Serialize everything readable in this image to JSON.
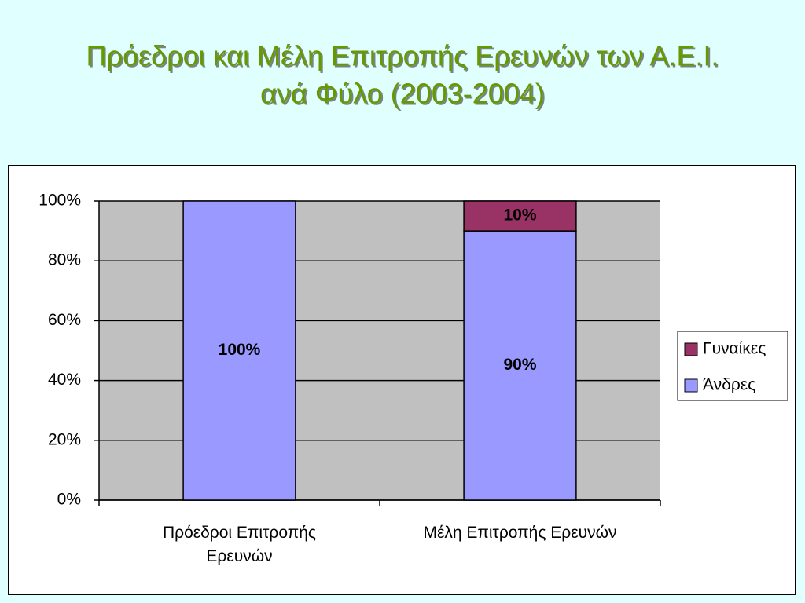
{
  "chart_data": {
    "type": "stacked_bar",
    "title": [
      "Πρόεδροι και Μέλη Επιτροπής Ερευνών των Α.Ε.Ι.",
      "ανά Φύλο (2003-2004)"
    ],
    "categories": [
      "Πρόεδροι Επιτροπής Ερευνών",
      "Μέλη Επιτροπής Ερευνών"
    ],
    "series": [
      {
        "name": "Άνδρες",
        "color": "#9999ff",
        "values": [
          100,
          90
        ],
        "value_labels": [
          "100%",
          "90%"
        ]
      },
      {
        "name": "Γυναίκες",
        "color": "#993366",
        "values": [
          0,
          10
        ],
        "value_labels": [
          null,
          "10%"
        ]
      }
    ],
    "ylim": [
      0,
      100
    ],
    "yticks": [
      {
        "value": 0,
        "label": "0%"
      },
      {
        "value": 20,
        "label": "20%"
      },
      {
        "value": 40,
        "label": "40%"
      },
      {
        "value": 60,
        "label": "60%"
      },
      {
        "value": 80,
        "label": "80%"
      },
      {
        "value": 100,
        "label": "100%"
      }
    ],
    "grid": true,
    "legend": "right"
  }
}
